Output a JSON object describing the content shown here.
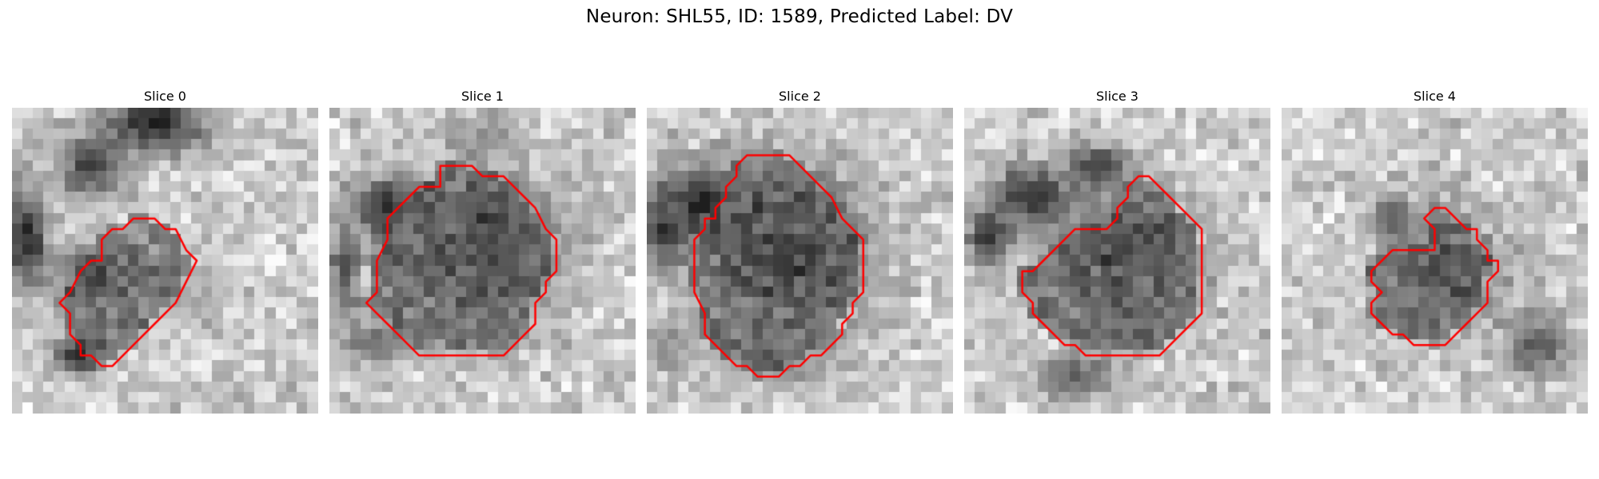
{
  "figure": {
    "title": "Neuron: SHL55, ID: 1589, Predicted Label: DV"
  },
  "colors": {
    "contour": "#ff0000",
    "colormap": "gray"
  },
  "panels": [
    {
      "title": "Slice 0",
      "blobs": [
        {
          "cx": 13,
          "cy": 1,
          "rx": 5,
          "ry": 3,
          "v": 40
        },
        {
          "cx": 7,
          "cy": 5,
          "rx": 3,
          "ry": 3,
          "v": 70
        },
        {
          "cx": 1,
          "cy": 12,
          "rx": 2,
          "ry": 5,
          "v": 45
        },
        {
          "cx": 7,
          "cy": 15,
          "rx": 2.5,
          "ry": 2,
          "v": 80
        },
        {
          "cx": 6,
          "cy": 23,
          "rx": 2.5,
          "ry": 1.5,
          "v": 30
        },
        {
          "cx": 9,
          "cy": 16,
          "rx": 4,
          "ry": 3,
          "v": 120
        },
        {
          "cx": 16,
          "cy": 17,
          "rx": 3,
          "ry": 3,
          "v": 170
        }
      ],
      "contour": [
        [
          11.5,
          10.5
        ],
        [
          13.5,
          10.5
        ],
        [
          14.5,
          11.5
        ],
        [
          15.5,
          11.5
        ],
        [
          16.5,
          13.5
        ],
        [
          17.5,
          14.5
        ],
        [
          16.5,
          16.5
        ],
        [
          15.5,
          18.5
        ],
        [
          13.5,
          20.5
        ],
        [
          11.5,
          22.5
        ],
        [
          10.5,
          23.5
        ],
        [
          9.5,
          24.5
        ],
        [
          8.5,
          24.5
        ],
        [
          7.5,
          23.5
        ],
        [
          6.5,
          23.5
        ],
        [
          6.5,
          22.5
        ],
        [
          5.5,
          21.5
        ],
        [
          5.5,
          19.5
        ],
        [
          4.5,
          18.5
        ],
        [
          5.5,
          17.5
        ],
        [
          6.5,
          15.5
        ],
        [
          7.5,
          14.5
        ],
        [
          8.5,
          14.5
        ],
        [
          8.5,
          12.5
        ],
        [
          9.5,
          11.5
        ],
        [
          10.5,
          11.5
        ]
      ]
    },
    {
      "title": "Slice 1",
      "blobs": [
        {
          "cx": 14,
          "cy": 13,
          "rx": 7.5,
          "ry": 7.5,
          "v": 70
        },
        {
          "cx": 5,
          "cy": 9,
          "rx": 3,
          "ry": 3,
          "v": 50
        },
        {
          "cx": 1,
          "cy": 15,
          "rx": 1.5,
          "ry": 5,
          "v": 80
        },
        {
          "cx": 4,
          "cy": 22,
          "rx": 3,
          "ry": 2,
          "v": 110
        },
        {
          "cx": 14,
          "cy": 2,
          "rx": 4,
          "ry": 2,
          "v": 150
        }
      ],
      "contour": [
        [
          10.5,
          5.5
        ],
        [
          13.5,
          5.5
        ],
        [
          14.5,
          6.5
        ],
        [
          16.5,
          6.5
        ],
        [
          17.5,
          7.5
        ],
        [
          18.5,
          8.5
        ],
        [
          19.5,
          9.5
        ],
        [
          20.5,
          11.5
        ],
        [
          21.5,
          12.5
        ],
        [
          21.5,
          15.5
        ],
        [
          20.5,
          16.5
        ],
        [
          20.5,
          17.5
        ],
        [
          19.5,
          18.5
        ],
        [
          19.5,
          20.5
        ],
        [
          18.5,
          21.5
        ],
        [
          17.5,
          22.5
        ],
        [
          16.5,
          23.5
        ],
        [
          8.5,
          23.5
        ],
        [
          6.5,
          21.5
        ],
        [
          5.5,
          20.5
        ],
        [
          4.5,
          19.5
        ],
        [
          3.5,
          18.5
        ],
        [
          4.5,
          17.5
        ],
        [
          4.5,
          16.5
        ],
        [
          4.5,
          14.5
        ],
        [
          5.5,
          12.5
        ],
        [
          5.5,
          10.5
        ],
        [
          6.5,
          9.5
        ],
        [
          7.5,
          8.5
        ],
        [
          8.5,
          7.5
        ],
        [
          10.5,
          7.5
        ],
        [
          10.5,
          6.5
        ]
      ]
    },
    {
      "title": "Slice 2",
      "blobs": [
        {
          "cx": 13,
          "cy": 13,
          "rx": 7.5,
          "ry": 8,
          "v": 55
        },
        {
          "cx": 5,
          "cy": 9,
          "rx": 4,
          "ry": 4,
          "v": 40
        },
        {
          "cx": 1,
          "cy": 11,
          "rx": 2,
          "ry": 4,
          "v": 60
        },
        {
          "cx": 2,
          "cy": 22,
          "rx": 2,
          "ry": 3,
          "v": 150
        },
        {
          "cx": 12,
          "cy": 24,
          "rx": 4,
          "ry": 2,
          "v": 130
        }
      ],
      "contour": [
        [
          9.5,
          4.5
        ],
        [
          11.5,
          4.5
        ],
        [
          13.5,
          4.5
        ],
        [
          14.5,
          5.5
        ],
        [
          15.5,
          6.5
        ],
        [
          16.5,
          7.5
        ],
        [
          17.5,
          8.5
        ],
        [
          18.5,
          10.5
        ],
        [
          19.5,
          11.5
        ],
        [
          20.5,
          12.5
        ],
        [
          20.5,
          17.5
        ],
        [
          19.5,
          18.5
        ],
        [
          19.5,
          19.5
        ],
        [
          18.5,
          20.5
        ],
        [
          18.5,
          21.5
        ],
        [
          17.5,
          22.5
        ],
        [
          16.5,
          23.5
        ],
        [
          15.5,
          23.5
        ],
        [
          14.5,
          24.5
        ],
        [
          13.5,
          24.5
        ],
        [
          12.5,
          25.5
        ],
        [
          10.5,
          25.5
        ],
        [
          9.5,
          24.5
        ],
        [
          8.5,
          24.5
        ],
        [
          7.5,
          23.5
        ],
        [
          6.5,
          22.5
        ],
        [
          5.5,
          21.5
        ],
        [
          5.5,
          19.5
        ],
        [
          4.5,
          17.5
        ],
        [
          4.5,
          12.5
        ],
        [
          5.5,
          11.5
        ],
        [
          5.5,
          10.5
        ],
        [
          6.5,
          10.5
        ],
        [
          6.5,
          9.5
        ],
        [
          7.5,
          8.5
        ],
        [
          7.5,
          7.5
        ],
        [
          8.5,
          6.5
        ],
        [
          8.5,
          5.5
        ]
      ]
    },
    {
      "title": "Slice 3",
      "blobs": [
        {
          "cx": 15,
          "cy": 14,
          "rx": 6.5,
          "ry": 6.5,
          "v": 75
        },
        {
          "cx": 6,
          "cy": 8,
          "rx": 4,
          "ry": 3,
          "v": 50
        },
        {
          "cx": 12,
          "cy": 5,
          "rx": 3,
          "ry": 2,
          "v": 70
        },
        {
          "cx": 2,
          "cy": 12,
          "rx": 2,
          "ry": 3,
          "v": 40
        },
        {
          "cx": 3,
          "cy": 20,
          "rx": 3,
          "ry": 5,
          "v": 200
        },
        {
          "cx": 10,
          "cy": 25,
          "rx": 4,
          "ry": 2,
          "v": 100
        }
      ],
      "contour": [
        [
          16.5,
          6.5
        ],
        [
          17.5,
          6.5
        ],
        [
          18.5,
          7.5
        ],
        [
          19.5,
          8.5
        ],
        [
          20.5,
          9.5
        ],
        [
          21.5,
          10.5
        ],
        [
          22.5,
          11.5
        ],
        [
          22.5,
          19.5
        ],
        [
          21.5,
          20.5
        ],
        [
          20.5,
          21.5
        ],
        [
          19.5,
          22.5
        ],
        [
          18.5,
          23.5
        ],
        [
          11.5,
          23.5
        ],
        [
          10.5,
          22.5
        ],
        [
          9.5,
          22.5
        ],
        [
          8.5,
          21.5
        ],
        [
          7.5,
          20.5
        ],
        [
          6.5,
          19.5
        ],
        [
          6.5,
          18.5
        ],
        [
          5.5,
          17.5
        ],
        [
          5.5,
          15.5
        ],
        [
          6.5,
          15.5
        ],
        [
          7.5,
          14.5
        ],
        [
          8.5,
          13.5
        ],
        [
          9.5,
          12.5
        ],
        [
          10.5,
          11.5
        ],
        [
          13.5,
          11.5
        ],
        [
          14.5,
          10.5
        ],
        [
          14.5,
          9.5
        ],
        [
          15.5,
          8.5
        ],
        [
          15.5,
          7.5
        ]
      ]
    },
    {
      "title": "Slice 4",
      "blobs": [
        {
          "cx": 15,
          "cy": 15,
          "rx": 5.5,
          "ry": 5.5,
          "v": 95
        },
        {
          "cx": 5,
          "cy": 17,
          "rx": 3,
          "ry": 4,
          "v": 200
        },
        {
          "cx": 10,
          "cy": 10,
          "rx": 2,
          "ry": 2,
          "v": 80
        },
        {
          "cx": 24,
          "cy": 22,
          "rx": 3,
          "ry": 3,
          "v": 90
        }
      ],
      "contour": [
        [
          14.5,
          9.5
        ],
        [
          15.5,
          9.5
        ],
        [
          16.5,
          10.5
        ],
        [
          17.5,
          11.5
        ],
        [
          18.5,
          11.5
        ],
        [
          18.5,
          12.5
        ],
        [
          19.5,
          13.5
        ],
        [
          19.5,
          14.5
        ],
        [
          20.5,
          14.5
        ],
        [
          20.5,
          15.5
        ],
        [
          19.5,
          16.5
        ],
        [
          19.5,
          18.5
        ],
        [
          18.5,
          19.5
        ],
        [
          17.5,
          20.5
        ],
        [
          16.5,
          21.5
        ],
        [
          15.5,
          22.5
        ],
        [
          12.5,
          22.5
        ],
        [
          11.5,
          21.5
        ],
        [
          10.5,
          21.5
        ],
        [
          9.5,
          20.5
        ],
        [
          8.5,
          19.5
        ],
        [
          8.5,
          18.5
        ],
        [
          9.5,
          17.5
        ],
        [
          8.5,
          16.5
        ],
        [
          8.5,
          15.5
        ],
        [
          9.5,
          14.5
        ],
        [
          10.5,
          13.5
        ],
        [
          14.5,
          13.5
        ],
        [
          14.5,
          11.5
        ],
        [
          13.5,
          10.5
        ]
      ]
    }
  ]
}
